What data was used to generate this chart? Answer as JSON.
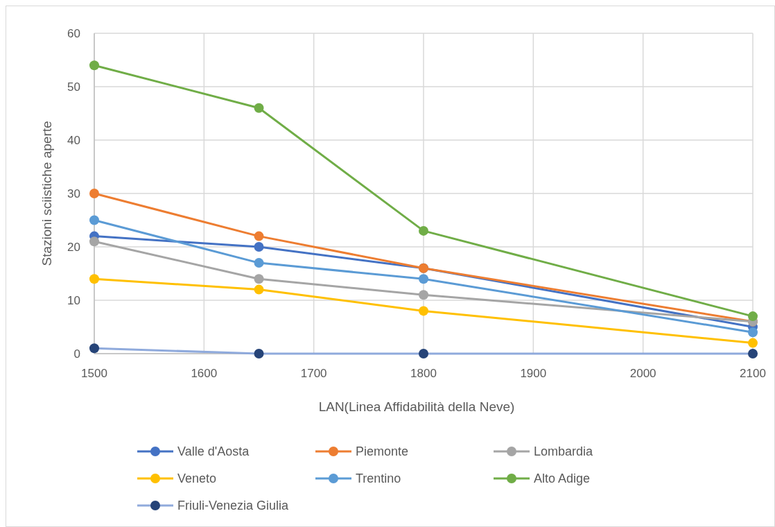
{
  "chart_data": {
    "type": "line",
    "xlabel": "LAN(Linea Affidabilità della Neve)",
    "ylabel": "Stazioni sciistiche aperte",
    "x": [
      1500,
      1650,
      1800,
      2100
    ],
    "xlim": [
      1500,
      2100
    ],
    "xticks": [
      1500,
      1600,
      1700,
      1800,
      1900,
      2000,
      2100
    ],
    "ylim": [
      0,
      60
    ],
    "yticks": [
      0,
      10,
      20,
      30,
      40,
      50,
      60
    ],
    "grid": true,
    "legend": "bottom",
    "marker": "circle",
    "line_style": "solid",
    "series": [
      {
        "name": "Valle d'Aosta",
        "color": "#4472c4",
        "values": [
          22,
          20,
          16,
          5
        ]
      },
      {
        "name": "Piemonte",
        "color": "#ed7d31",
        "values": [
          30,
          22,
          16,
          6
        ]
      },
      {
        "name": "Lombardia",
        "color": "#a5a5a5",
        "values": [
          21,
          14,
          11,
          6
        ]
      },
      {
        "name": "Veneto",
        "color": "#ffc000",
        "values": [
          14,
          12,
          8,
          2
        ]
      },
      {
        "name": "Trentino",
        "color": "#5b9bd5",
        "values": [
          25,
          17,
          14,
          4
        ]
      },
      {
        "name": "Alto Adige",
        "color": "#70ad47",
        "values": [
          54,
          46,
          23,
          7
        ]
      },
      {
        "name": "Friuli-Venezia Giulia",
        "color": "#8faadc",
        "colors": [
          "#264478",
          "#264478",
          "#264478",
          "#264478"
        ],
        "values": [
          1,
          0,
          0,
          0
        ]
      }
    ]
  }
}
